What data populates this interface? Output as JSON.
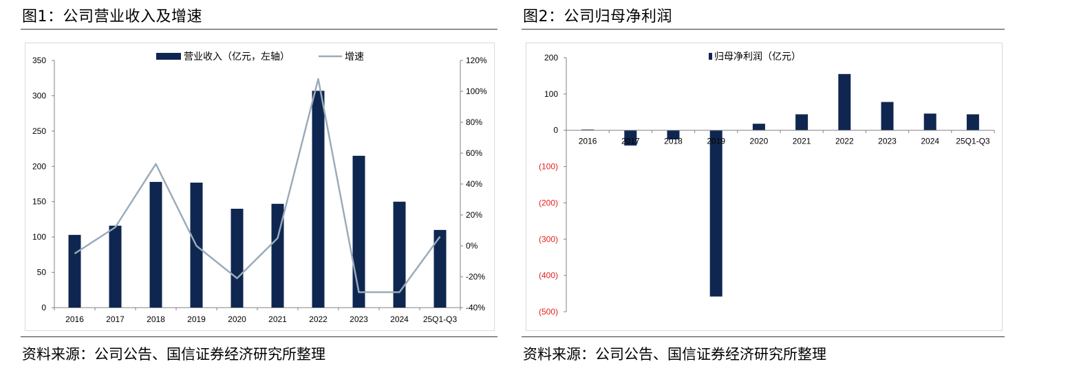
{
  "left_panel": {
    "title": "图1：公司营业收入及增速",
    "source": "资料来源：公司公告、国信证券经济研究所整理"
  },
  "right_panel": {
    "title": "图2：公司归母净利润",
    "source": "资料来源：公司公告、国信证券经济研究所整理"
  },
  "colors": {
    "bar": "#0f2750",
    "line": "#9aabba",
    "negative_tick": "#e0201b",
    "axis": "#808080"
  },
  "chart_data": [
    {
      "type": "bar",
      "categories": [
        "2016",
        "2017",
        "2018",
        "2019",
        "2020",
        "2021",
        "2022",
        "2023",
        "2024",
        "25Q1-Q3"
      ],
      "series": [
        {
          "name": "营业收入（亿元，左轴）",
          "type": "bar",
          "axis": "left",
          "values": [
            103,
            116,
            178,
            177,
            140,
            147,
            307,
            215,
            150,
            110
          ]
        },
        {
          "name": "增速",
          "type": "line",
          "axis": "right",
          "values": [
            -5,
            12,
            53,
            0,
            -21,
            5,
            108,
            -30,
            -30,
            6
          ]
        }
      ],
      "ylim_left": [
        0,
        350
      ],
      "yticks_left": [
        "0",
        "50",
        "100",
        "150",
        "200",
        "250",
        "300",
        "350"
      ],
      "ylim_right": [
        -40,
        120
      ],
      "yticks_right": [
        "-40%",
        "-20%",
        "0%",
        "20%",
        "40%",
        "60%",
        "80%",
        "100%",
        "120%"
      ],
      "legend_position": "top-center"
    },
    {
      "type": "bar",
      "categories": [
        "2016",
        "2017",
        "2018",
        "2019",
        "2020",
        "2021",
        "2022",
        "2023",
        "2024",
        "25Q1-Q3"
      ],
      "series": [
        {
          "name": "归母净利润（亿元）",
          "type": "bar",
          "values": [
            2,
            -42,
            -25,
            -458,
            18,
            44,
            155,
            78,
            46,
            44
          ]
        }
      ],
      "ylim": [
        -500,
        200
      ],
      "yticks": [
        "(500)",
        "(400)",
        "(300)",
        "(200)",
        "(100)",
        "0",
        "100",
        "200"
      ],
      "legend_position": "top-center"
    }
  ]
}
